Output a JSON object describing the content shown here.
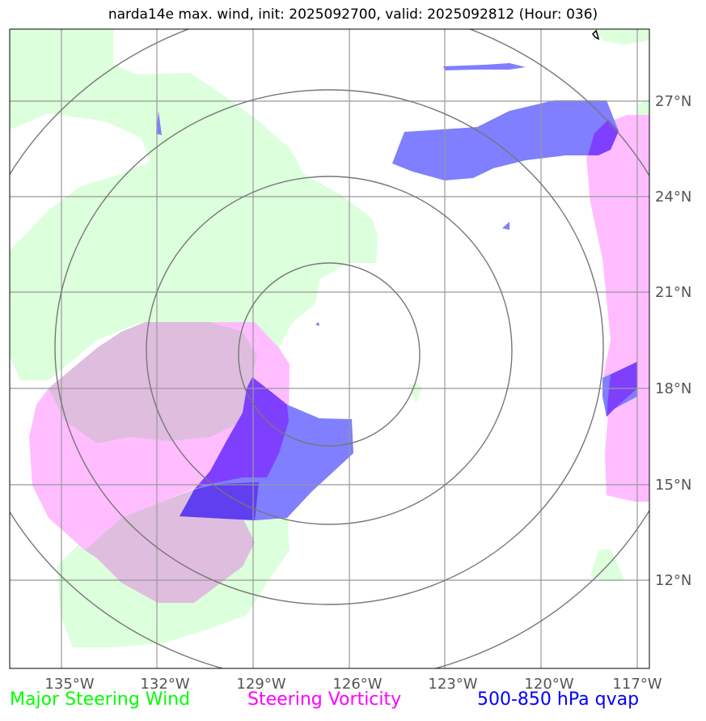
{
  "title": "narda14e max. wind, init: 2025092700, valid: 2025092812 (Hour: 036)",
  "map": {
    "lon_ticks": [
      "135°W",
      "132°W",
      "129°W",
      "126°W",
      "123°W",
      "120°W",
      "117°W"
    ],
    "lat_ticks": [
      "27°N",
      "24°N",
      "21°N",
      "18°N",
      "15°N",
      "12°N"
    ],
    "lon_values": [
      -135,
      -132,
      -129,
      -126,
      -123,
      -120,
      -117
    ],
    "lat_values": [
      27,
      24,
      21,
      18,
      15,
      12
    ],
    "lon_range": [
      -135.7,
      -115.8
    ],
    "lat_range": [
      9.7,
      29.7
    ],
    "range_rings": 4,
    "colors": {
      "wind": "#dcffdc",
      "vorticity": "#ffbdff",
      "overlap_wind_vort": "#dfbddf",
      "qvap": "#7f7fff",
      "overlap_vort_qvap": "#7f3fff",
      "overlap_all": "#5f3fef",
      "grid": "#999999",
      "rings": "#777777"
    }
  },
  "legend": {
    "wind": "Major Steering Wind",
    "vorticity": "Steering Vorticity",
    "qvap": "500-850 hPa qvap",
    "wind_color": "#00ff00",
    "vorticity_color": "#ff00ff",
    "qvap_color": "#0000ff"
  }
}
